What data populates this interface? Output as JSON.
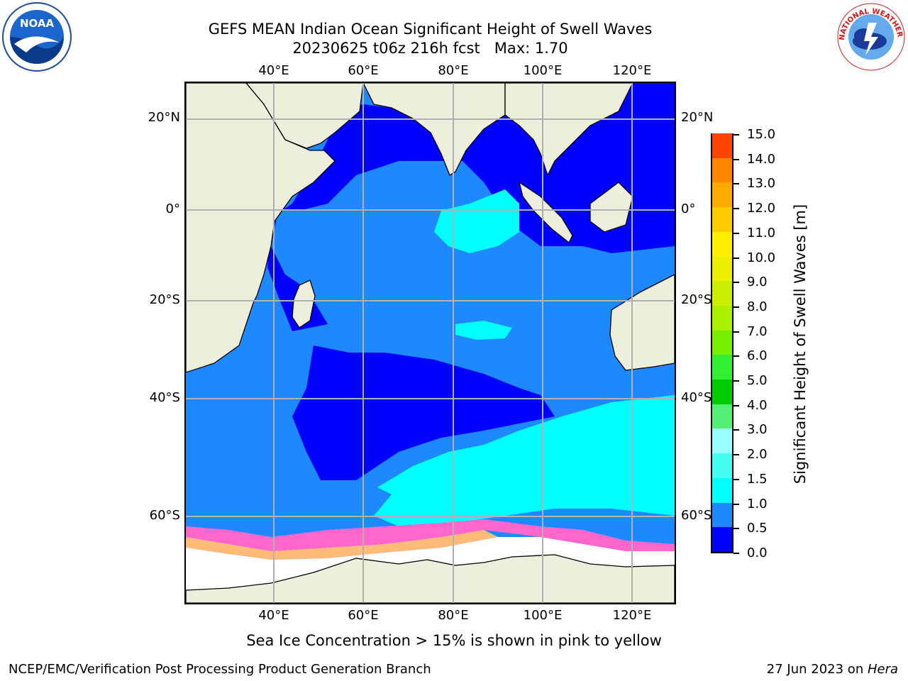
{
  "header": {
    "title_line1": "GEFS MEAN Indian Ocean Significant Height of Swell Waves",
    "title_line2": "20230625 t06z 216h fcst   Max: 1.70"
  },
  "map": {
    "lon_ticks_top": [
      "40°E",
      "60°E",
      "80°E",
      "100°E",
      "120°E"
    ],
    "lon_ticks_bottom": [
      "40°E",
      "60°E",
      "80°E",
      "100°E",
      "120°E"
    ],
    "lat_ticks_left": [
      "20°N",
      "0°",
      "20°S",
      "40°S",
      "60°S"
    ],
    "lat_ticks_right": [
      "20°N",
      "0°",
      "20°S",
      "40°S",
      "60°S"
    ],
    "land_color": "#eeeedd",
    "grid_color": "#b0b0b0",
    "ice_colors": [
      "#ff66cc",
      "#ffbb77",
      "#ffee55"
    ]
  },
  "colorbar": {
    "label": "Significant Height of Swell Waves [m]",
    "ticks": [
      "0.0",
      "0.5",
      "1.0",
      "1.5",
      "2.0",
      "3.0",
      "4.0",
      "5.0",
      "6.0",
      "7.0",
      "8.0",
      "9.0",
      "10.0",
      "11.0",
      "12.0",
      "13.0",
      "14.0",
      "15.0"
    ],
    "colors": [
      "#0000ff",
      "#1e88ff",
      "#00ffff",
      "#44fff0",
      "#99ffff",
      "#55ee77",
      "#00cc00",
      "#33ee33",
      "#77ee00",
      "#aaee00",
      "#ccee00",
      "#eeee00",
      "#ffee00",
      "#ffcc00",
      "#ffaa00",
      "#ff8800",
      "#ff4400",
      "#ff0000"
    ]
  },
  "footer": {
    "note": "Sea Ice Concentration > 15% is shown in pink to yellow",
    "left": "NCEP/EMC/Verification Post Processing Product Generation Branch",
    "date": "27 Jun 2023 on ",
    "machine": "Hera"
  },
  "logos": {
    "noaa_text": "NOAA",
    "nws_text": "NATIONAL WEATHER SERVICE"
  }
}
